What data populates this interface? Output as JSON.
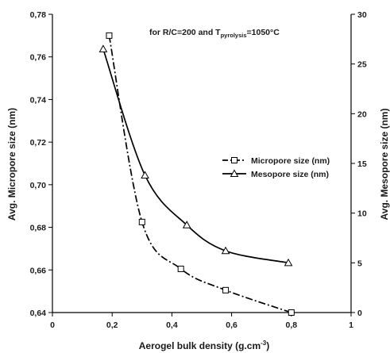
{
  "chart_data": {
    "type": "line",
    "annotation": {
      "prefix": "for R/C=200 and T",
      "subscript": "pyrolysis",
      "suffix": "=1050°C"
    },
    "xlabel": {
      "main": "Aerogel bulk density (g.cm",
      "sup": "-3",
      "end": ")"
    },
    "ylabel_left": "Avg. Micropore size (nm)",
    "ylabel_right": "Avg. Mesopore size (nm)",
    "xlim": [
      0,
      1
    ],
    "ylim_left": [
      0.64,
      0.78
    ],
    "ylim_right": [
      0,
      30
    ],
    "x_ticks": [
      "0",
      "0,2",
      "0,4",
      "0,6",
      "0,8",
      "1"
    ],
    "y_left_ticks": [
      "0,64",
      "0,66",
      "0,68",
      "0,70",
      "0,72",
      "0,74",
      "0,76",
      "0,78"
    ],
    "y_right_ticks": [
      "0",
      "5",
      "10",
      "15",
      "20",
      "25",
      "30"
    ],
    "legend_position": "right-middle",
    "grid": false,
    "series": [
      {
        "name": "Micropore size (nm)",
        "axis": "left",
        "marker": "square",
        "line_style": "dash-dot",
        "x": [
          0.19,
          0.3,
          0.43,
          0.58,
          0.8
        ],
        "y": [
          0.77,
          0.6825,
          0.6605,
          0.6505,
          0.64
        ]
      },
      {
        "name": "Mesopore size (nm)",
        "axis": "right",
        "marker": "triangle",
        "line_style": "solid",
        "x": [
          0.17,
          0.31,
          0.45,
          0.58,
          0.79
        ],
        "y": [
          26.5,
          13.8,
          8.8,
          6.2,
          5.0
        ]
      }
    ]
  }
}
